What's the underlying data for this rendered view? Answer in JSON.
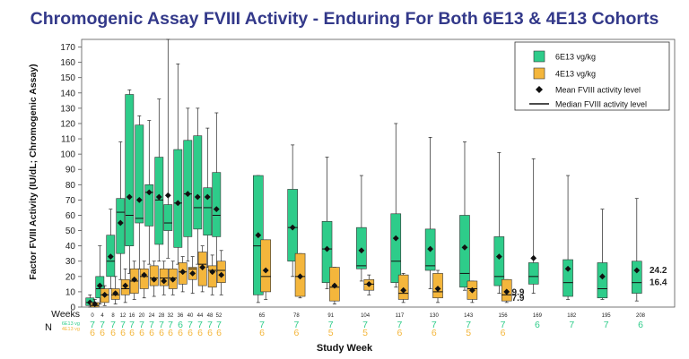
{
  "chart_data": {
    "type": "box",
    "title": "Chromogenic Assay FVIII Activity - Enduring For Both 6E13 & 4E13 Cohorts",
    "xlabel": "Study Week",
    "ylabel": "Factor FVIII Activity (IU/dL; Chromogenic Assay)",
    "ylim": [
      0,
      175
    ],
    "yticks": [
      0,
      10,
      20,
      30,
      40,
      50,
      60,
      70,
      80,
      90,
      100,
      110,
      120,
      130,
      140,
      150,
      160,
      170
    ],
    "weeks_row_label": "Weeks",
    "n_row_label": "N",
    "n_row_series_labels": [
      "6E13 vg",
      "4E13 vg"
    ],
    "legend": {
      "position": "top-right",
      "items": [
        {
          "label": "6E13 vg/kg",
          "kind": "box",
          "color": "#2ecc8a"
        },
        {
          "label": "4E13 vg/kg",
          "kind": "box",
          "color": "#f4b63c"
        },
        {
          "label": "Mean FVIII activity level",
          "kind": "diamond",
          "color": "#111111"
        },
        {
          "label": "Median FVIII activity level",
          "kind": "line",
          "color": "#111111"
        }
      ]
    },
    "weeks": [
      0,
      4,
      8,
      12,
      16,
      20,
      24,
      28,
      32,
      36,
      40,
      44,
      48,
      52,
      65,
      78,
      91,
      104,
      117,
      130,
      143,
      156,
      169,
      182,
      195,
      208
    ],
    "series": [
      {
        "name": "6E13 vg/kg",
        "color": "#2ecc8a",
        "n": [
          7,
          7,
          7,
          7,
          7,
          7,
          7,
          7,
          7,
          6,
          7,
          7,
          7,
          7,
          7,
          7,
          7,
          7,
          7,
          7,
          7,
          7,
          6,
          7,
          7,
          6
        ],
        "boxes": [
          {
            "week": 0,
            "min": 0,
            "q1": 1,
            "median": 3,
            "q3": 6,
            "max": 8,
            "mean": 3
          },
          {
            "week": 4,
            "min": 2,
            "q1": 6,
            "median": 12,
            "q3": 20,
            "max": 40,
            "mean": 14
          },
          {
            "week": 8,
            "min": 12,
            "q1": 20,
            "median": 30,
            "q3": 47,
            "max": 64,
            "mean": 33
          },
          {
            "week": 12,
            "min": 18,
            "q1": 35,
            "median": 62,
            "q3": 71,
            "max": 108,
            "mean": 55
          },
          {
            "week": 16,
            "min": 22,
            "q1": 40,
            "median": 60,
            "q3": 139,
            "max": 142,
            "mean": 72
          },
          {
            "week": 20,
            "min": 25,
            "q1": 55,
            "median": 58,
            "q3": 119,
            "max": 125,
            "mean": 70
          },
          {
            "week": 24,
            "min": 28,
            "q1": 53,
            "median": 75,
            "q3": 80,
            "max": 122,
            "mean": 75
          },
          {
            "week": 28,
            "min": 30,
            "q1": 41,
            "median": 70,
            "q3": 98,
            "max": 136,
            "mean": 72
          },
          {
            "week": 32,
            "min": 32,
            "q1": 50,
            "median": 55,
            "q3": 67,
            "max": 175,
            "mean": 73
          },
          {
            "week": 36,
            "min": 28,
            "q1": 39,
            "median": 68,
            "q3": 103,
            "max": 159,
            "mean": 68
          },
          {
            "week": 40,
            "min": 30,
            "q1": 46,
            "median": 74,
            "q3": 109,
            "max": 130,
            "mean": 74
          },
          {
            "week": 44,
            "min": 28,
            "q1": 51,
            "median": 65,
            "q3": 112,
            "max": 130,
            "mean": 72
          },
          {
            "week": 48,
            "min": 26,
            "q1": 47,
            "median": 65,
            "q3": 78,
            "max": 117,
            "mean": 72
          },
          {
            "week": 52,
            "min": 23,
            "q1": 46,
            "median": 60,
            "q3": 88,
            "max": 127,
            "mean": 64
          },
          {
            "week": 65,
            "min": 3,
            "q1": 8,
            "median": 40,
            "q3": 86,
            "max": 86,
            "mean": 47
          },
          {
            "week": 78,
            "min": 20,
            "q1": 30,
            "median": 52,
            "q3": 77,
            "max": 106,
            "mean": 52
          },
          {
            "week": 91,
            "min": 12,
            "q1": 16,
            "median": 38,
            "q3": 56,
            "max": 98,
            "mean": 38
          },
          {
            "week": 104,
            "min": 17,
            "q1": 25,
            "median": 27,
            "q3": 52,
            "max": 86,
            "mean": 37
          },
          {
            "week": 117,
            "min": 13,
            "q1": 16,
            "median": 30,
            "q3": 61,
            "max": 120,
            "mean": 45
          },
          {
            "week": 130,
            "min": 12,
            "q1": 24,
            "median": 27,
            "q3": 51,
            "max": 111,
            "mean": 38
          },
          {
            "week": 143,
            "min": 11,
            "q1": 13,
            "median": 22,
            "q3": 60,
            "max": 108,
            "mean": 39
          },
          {
            "week": 156,
            "min": 9,
            "q1": 14,
            "median": 20,
            "q3": 46,
            "max": 101,
            "mean": 33
          },
          {
            "week": 169,
            "min": 9,
            "q1": 15,
            "median": 20,
            "q3": 29,
            "max": 97,
            "mean": 32
          },
          {
            "week": 182,
            "min": 5,
            "q1": 7,
            "median": 16,
            "q3": 31,
            "max": 86,
            "mean": 25
          },
          {
            "week": 195,
            "min": 5,
            "q1": 6,
            "median": 12,
            "q3": 29,
            "max": 64,
            "mean": 20
          },
          {
            "week": 208,
            "min": 4,
            "q1": 9,
            "median": 16,
            "q3": 30,
            "max": 71,
            "mean": 24
          }
        ]
      },
      {
        "name": "4E13 vg/kg",
        "color": "#f4b63c",
        "n": [
          6,
          6,
          6,
          6,
          6,
          6,
          6,
          6,
          6,
          6,
          6,
          6,
          6,
          6,
          6,
          6,
          5,
          5,
          6,
          6,
          5,
          6
        ],
        "boxes": [
          {
            "week": 0,
            "min": 0,
            "q1": 0,
            "median": 1,
            "q3": 3,
            "max": 5,
            "mean": 2
          },
          {
            "week": 4,
            "min": 1,
            "q1": 3,
            "median": 8,
            "q3": 12,
            "max": 14,
            "mean": 8
          },
          {
            "week": 8,
            "min": 2,
            "q1": 5,
            "median": 8,
            "q3": 12,
            "max": 20,
            "mean": 9
          },
          {
            "week": 12,
            "min": 3,
            "q1": 8,
            "median": 12,
            "q3": 18,
            "max": 25,
            "mean": 14
          },
          {
            "week": 16,
            "min": 5,
            "q1": 9,
            "median": 17,
            "q3": 25,
            "max": 30,
            "mean": 18
          },
          {
            "week": 20,
            "min": 6,
            "q1": 12,
            "median": 20,
            "q3": 25,
            "max": 30,
            "mean": 21
          },
          {
            "week": 24,
            "min": 7,
            "q1": 14,
            "median": 19,
            "q3": 27,
            "max": 30,
            "mean": 18
          },
          {
            "week": 28,
            "min": 8,
            "q1": 14,
            "median": 19,
            "q3": 25,
            "max": 30,
            "mean": 17
          },
          {
            "week": 32,
            "min": 8,
            "q1": 12,
            "median": 19,
            "q3": 25,
            "max": 30,
            "mean": 18
          },
          {
            "week": 36,
            "min": 10,
            "q1": 15,
            "median": 23,
            "q3": 29,
            "max": 33,
            "mean": 23
          },
          {
            "week": 40,
            "min": 9,
            "q1": 18,
            "median": 25,
            "q3": 26,
            "max": 33,
            "mean": 22
          },
          {
            "week": 44,
            "min": 10,
            "q1": 14,
            "median": 28,
            "q3": 36,
            "max": 40,
            "mean": 26
          },
          {
            "week": 48,
            "min": 8,
            "q1": 13,
            "median": 24,
            "q3": 27,
            "max": 34,
            "mean": 23
          },
          {
            "week": 52,
            "min": 8,
            "q1": 16,
            "median": 24,
            "q3": 30,
            "max": 37,
            "mean": 21
          },
          {
            "week": 65,
            "min": 5,
            "q1": 10,
            "median": 20,
            "q3": 44,
            "max": 44,
            "mean": 24
          },
          {
            "week": 78,
            "min": 6,
            "q1": 7,
            "median": 20,
            "q3": 35,
            "max": 35,
            "mean": 20
          },
          {
            "week": 91,
            "min": 2,
            "q1": 4,
            "median": 13,
            "q3": 26,
            "max": 26,
            "mean": 14
          },
          {
            "week": 104,
            "min": 8,
            "q1": 11,
            "median": 15,
            "q3": 18,
            "max": 21,
            "mean": 15
          },
          {
            "week": 117,
            "min": 3,
            "q1": 5,
            "median": 9,
            "q3": 21,
            "max": 22,
            "mean": 11
          },
          {
            "week": 130,
            "min": 3,
            "q1": 6,
            "median": 10,
            "q3": 22,
            "max": 24,
            "mean": 12
          },
          {
            "week": 143,
            "min": 3,
            "q1": 5,
            "median": 12,
            "q3": 17,
            "max": 17,
            "mean": 11
          },
          {
            "week": 156,
            "min": 3,
            "q1": 4,
            "median": 8,
            "q3": 18,
            "max": 18,
            "mean": 10
          }
        ]
      }
    ],
    "annotations": [
      {
        "text": "9.9",
        "series": "4E13 vg/kg",
        "week": 156,
        "value": 9.9
      },
      {
        "text": "7.9",
        "series": "4E13 vg/kg",
        "week": 156,
        "value": 7.9
      },
      {
        "text": "24.2",
        "series": "6E13 vg/kg",
        "week": 208,
        "value": 24.2
      },
      {
        "text": "16.4",
        "series": "6E13 vg/kg",
        "week": 208,
        "value": 16.4
      }
    ]
  }
}
